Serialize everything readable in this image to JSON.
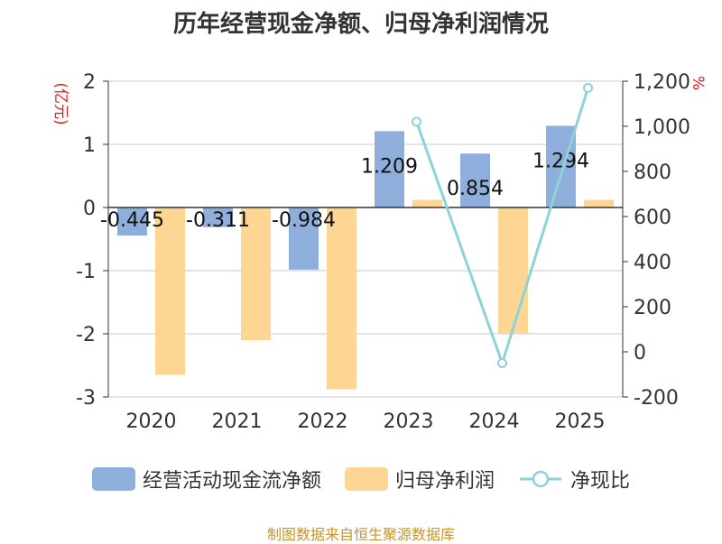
{
  "title": "历年经营现金净额、归母净利润情况",
  "source": "制图数据来自恒生聚源数据库",
  "colors": {
    "cash_flow": "#8eaedb",
    "net_profit": "#fdd694",
    "ratio": "#8dd2d8",
    "unit_label": "#e0201b",
    "source": "#c4962a",
    "axis": "#333333",
    "grid": "#c8c8c8"
  },
  "chart_data": {
    "type": "bar",
    "title": "历年经营现金净额、归母净利润情况",
    "categories": [
      "2020",
      "2021",
      "2022",
      "2023",
      "2024",
      "2025"
    ],
    "ylabel": "(亿元)",
    "ylabel_right": "%",
    "ylim": [
      -3,
      2
    ],
    "yticks": [
      "2",
      "1",
      "0",
      "-1",
      "-2",
      "-3"
    ],
    "ylim_right": [
      -200,
      1200
    ],
    "yticks_right": [
      "1,200",
      "1,000",
      "800",
      "600",
      "400",
      "200",
      "0",
      "-200"
    ],
    "series": [
      {
        "name": "经营活动现金流净额",
        "type": "bar",
        "values": [
          -0.445,
          -0.311,
          -0.984,
          1.209,
          0.854,
          1.294
        ],
        "labels": [
          "-0.445",
          "-0.311",
          "-0.984",
          "1.209",
          "0.854",
          "1.294"
        ]
      },
      {
        "name": "归母净利润",
        "type": "bar",
        "values": [
          -2.65,
          -2.1,
          -2.88,
          0.12,
          -2.0,
          0.12
        ]
      },
      {
        "name": "净现比",
        "type": "line",
        "axis": "right",
        "values": [
          null,
          null,
          null,
          1020,
          -50,
          1170
        ]
      }
    ],
    "legend": [
      "经营活动现金流净额",
      "归母净利润",
      "净现比"
    ],
    "legend_position": "bottom"
  }
}
